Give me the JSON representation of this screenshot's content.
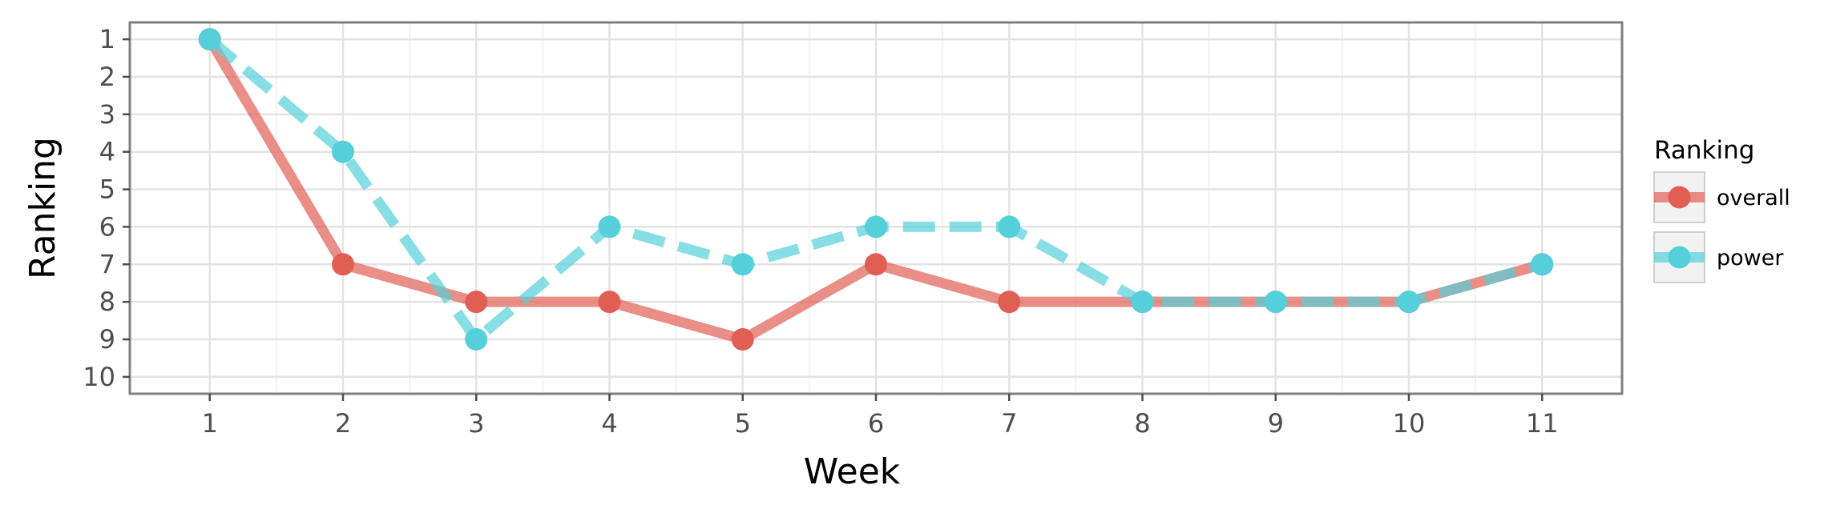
{
  "chart_data": {
    "type": "line",
    "xlabel": "Week",
    "ylabel": "Ranking",
    "x": [
      1,
      2,
      3,
      4,
      5,
      6,
      7,
      8,
      9,
      10,
      11
    ],
    "x_ticks": [
      "1",
      "2",
      "3",
      "4",
      "5",
      "6",
      "7",
      "8",
      "9",
      "10",
      "11"
    ],
    "y_ticks": [
      "1",
      "2",
      "3",
      "4",
      "5",
      "6",
      "7",
      "8",
      "9",
      "10"
    ],
    "ylim": [
      1,
      10
    ],
    "y_reversed": true,
    "grid": true,
    "legend": {
      "title": "Ranking",
      "placement": "right"
    },
    "series": [
      {
        "name": "overall",
        "values": [
          1,
          7,
          8,
          8,
          9,
          7,
          8,
          8,
          8,
          8,
          7
        ],
        "color": "#e15e55",
        "line_style": "solid"
      },
      {
        "name": "power",
        "values": [
          1,
          4,
          9,
          6,
          7,
          6,
          6,
          8,
          8,
          8,
          7
        ],
        "color": "#55d0da",
        "line_style": "dashed"
      }
    ]
  }
}
